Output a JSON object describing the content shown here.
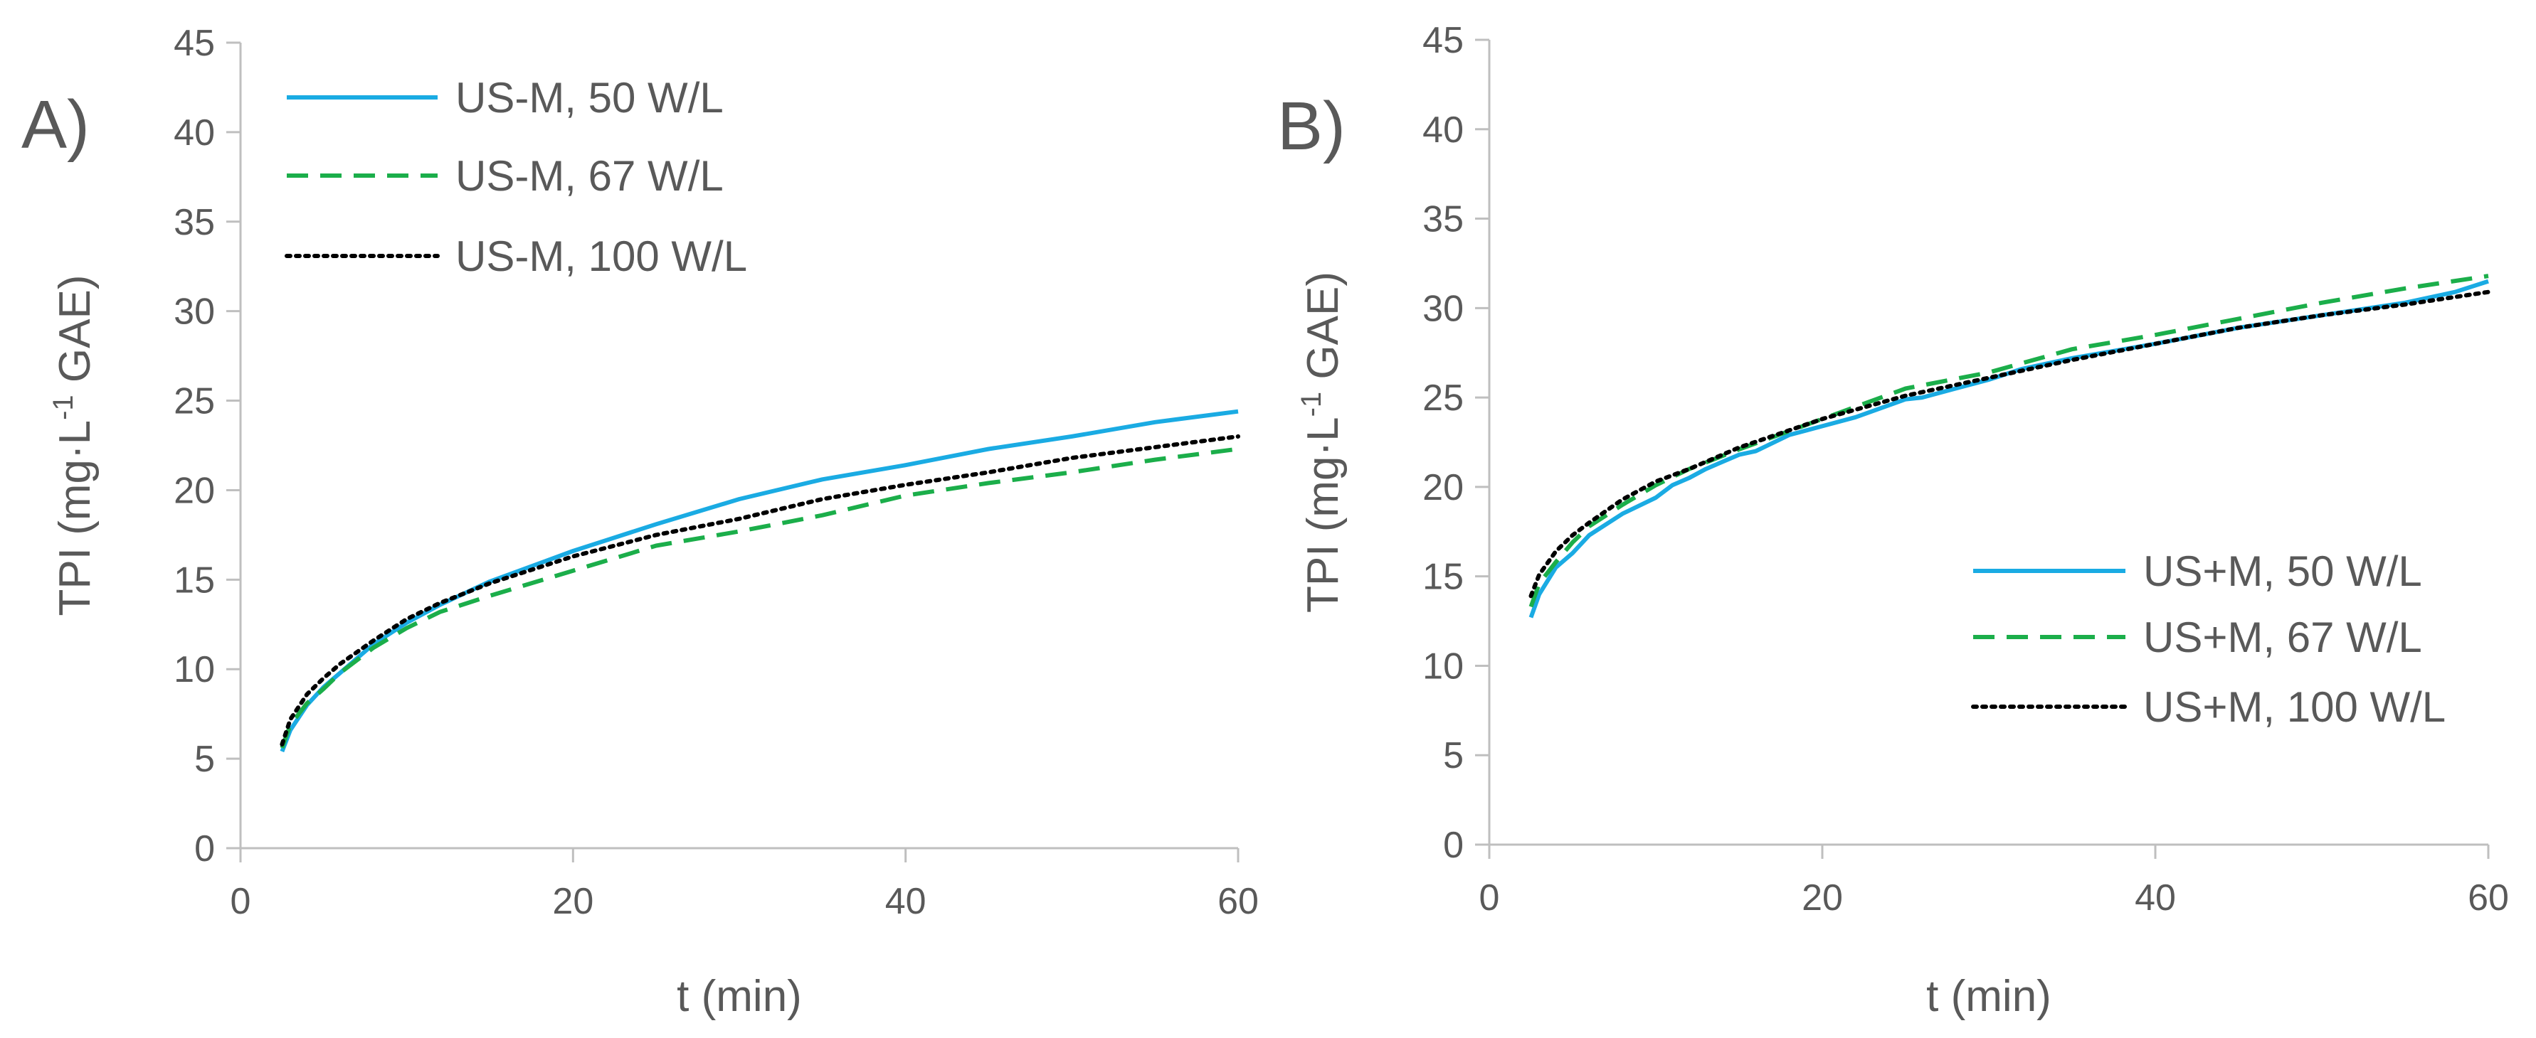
{
  "chart_data": [
    {
      "type": "line",
      "panel_label": "A)",
      "xlabel": "t (min)",
      "ylabel": {
        "prefix": "TPI (mg·L",
        "superscript": "-1",
        "suffix": " GAE)"
      },
      "xlim": [
        0,
        60
      ],
      "ylim": [
        0,
        45
      ],
      "xticks": [
        0,
        20,
        40,
        60
      ],
      "yticks": [
        0,
        5,
        10,
        15,
        20,
        25,
        30,
        35,
        40,
        45
      ],
      "legend_position": "top-left",
      "series": [
        {
          "name": "US-M, 50 W/L",
          "color": "#1aabe3",
          "style": "solid",
          "x": [
            2.5,
            3,
            4,
            5,
            6,
            8,
            10,
            12,
            15,
            20,
            25,
            30,
            35,
            40,
            45,
            50,
            55,
            60
          ],
          "y": [
            5.4,
            6.6,
            8.0,
            9.0,
            9.8,
            11.4,
            12.6,
            13.6,
            14.9,
            16.6,
            18.1,
            19.5,
            20.6,
            21.4,
            22.3,
            23.0,
            23.8,
            24.4
          ]
        },
        {
          "name": "US-M, 67 W/L",
          "color": "#1bae4a",
          "style": "dashed",
          "x": [
            2.5,
            3,
            4,
            5,
            6,
            8,
            10,
            12,
            15,
            20,
            25,
            30,
            35,
            40,
            45,
            50,
            55,
            60
          ],
          "y": [
            5.6,
            6.9,
            8.1,
            8.9,
            9.8,
            11.2,
            12.3,
            13.2,
            14.1,
            15.5,
            16.9,
            17.7,
            18.6,
            19.7,
            20.4,
            21.0,
            21.7,
            22.3
          ]
        },
        {
          "name": "US-M, 100 W/L",
          "color": "#000000",
          "style": "dotted",
          "x": [
            2.5,
            3,
            4,
            5,
            6,
            8,
            10,
            12,
            15,
            20,
            25,
            30,
            35,
            40,
            45,
            50,
            55,
            60
          ],
          "y": [
            5.8,
            7.2,
            8.6,
            9.5,
            10.3,
            11.6,
            12.8,
            13.7,
            14.8,
            16.3,
            17.5,
            18.4,
            19.5,
            20.3,
            21.0,
            21.8,
            22.4,
            23.0
          ]
        }
      ]
    },
    {
      "type": "line",
      "panel_label": "B)",
      "xlabel": "t (min)",
      "ylabel": {
        "prefix": "TPI (mg·L",
        "superscript": "-1",
        "suffix": " GAE)"
      },
      "xlim": [
        0,
        60
      ],
      "ylim": [
        0,
        45
      ],
      "xticks": [
        0,
        20,
        40,
        60
      ],
      "yticks": [
        0,
        5,
        10,
        15,
        20,
        25,
        30,
        35,
        40,
        45
      ],
      "legend_position": "bottom-right",
      "series": [
        {
          "name": "US+M, 50 W/L",
          "color": "#1aabe3",
          "style": "solid",
          "x": [
            2.5,
            3,
            4,
            5,
            6,
            8,
            10,
            11,
            12,
            13,
            15,
            16,
            18,
            20,
            22,
            25,
            26,
            28,
            30,
            32,
            35,
            40,
            45,
            50,
            55,
            58,
            60
          ],
          "y": [
            12.7,
            14.0,
            15.5,
            16.3,
            17.3,
            18.5,
            19.4,
            20.1,
            20.5,
            21.0,
            21.8,
            22.0,
            22.9,
            23.4,
            23.9,
            24.9,
            25.0,
            25.5,
            26.0,
            26.6,
            27.2,
            28.0,
            28.9,
            29.6,
            30.3,
            30.9,
            31.5
          ]
        },
        {
          "name": "US+M, 67 W/L",
          "color": "#1bae4a",
          "style": "dashed",
          "x": [
            2.5,
            3,
            4,
            5,
            6,
            8,
            10,
            12,
            15,
            20,
            25,
            30,
            35,
            40,
            45,
            50,
            55,
            60
          ],
          "y": [
            13.3,
            14.6,
            15.8,
            16.9,
            17.8,
            19.0,
            20.1,
            21.0,
            22.1,
            23.8,
            25.5,
            26.4,
            27.7,
            28.5,
            29.4,
            30.3,
            31.1,
            31.8
          ]
        },
        {
          "name": "US+M, 100 W/L",
          "color": "#000000",
          "style": "dotted",
          "x": [
            2.5,
            3,
            4,
            5,
            6,
            8,
            10,
            12,
            15,
            20,
            25,
            30,
            35,
            40,
            45,
            50,
            55,
            60
          ],
          "y": [
            13.9,
            15.1,
            16.4,
            17.3,
            18.0,
            19.3,
            20.3,
            21.0,
            22.2,
            23.8,
            25.1,
            26.1,
            27.1,
            28.0,
            28.9,
            29.6,
            30.2,
            30.9
          ]
        }
      ]
    }
  ]
}
